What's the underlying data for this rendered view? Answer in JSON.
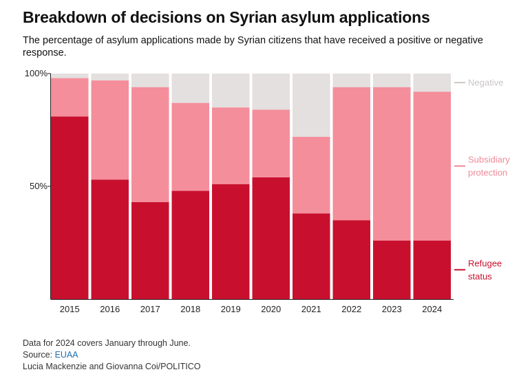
{
  "title": "Breakdown of decisions on Syrian asylum applications",
  "subtitle": "The percentage of asylum applications made by Syrian citizens that have received a positive or negative response.",
  "footer": {
    "note": "Data for 2024 covers January through June.",
    "source_prefix": "Source: ",
    "source_link": "EUAA",
    "credit": "Lucia Mackenzie and Giovanna Coi/POLITICO"
  },
  "colors": {
    "refugee": "#c8102e",
    "subsidiary": "#f48e9b",
    "negative": "#e3e0df",
    "negative_label": "#c9c6c5",
    "subsidiary_label": "#ee8a97",
    "refugee_label": "#c8102e",
    "axis": "#222222"
  },
  "chart_data": {
    "type": "bar",
    "stacked": true,
    "categories": [
      "2015",
      "2016",
      "2017",
      "2018",
      "2019",
      "2020",
      "2021",
      "2022",
      "2023",
      "2024"
    ],
    "ylim": [
      0,
      100
    ],
    "yticks": [
      {
        "value": 50,
        "label": "50%"
      },
      {
        "value": 100,
        "label": "100%"
      }
    ],
    "series": [
      {
        "key": "refugee",
        "name": "Refugee status",
        "label_lines": [
          "Refugee",
          "status"
        ],
        "values": [
          81,
          53,
          43,
          48,
          51,
          54,
          38,
          35,
          26,
          26
        ]
      },
      {
        "key": "subsidiary",
        "name": "Subsidiary protection",
        "label_lines": [
          "Subsidiary",
          "protection"
        ],
        "values": [
          17,
          44,
          51,
          39,
          34,
          30,
          34,
          59,
          68,
          66
        ]
      },
      {
        "key": "negative",
        "name": "Negative",
        "label_lines": [
          "Negative"
        ],
        "values": [
          2,
          3,
          6,
          13,
          15,
          16,
          28,
          6,
          6,
          8
        ]
      }
    ],
    "legend_placement": "right, beside the last bar",
    "grid": false
  }
}
